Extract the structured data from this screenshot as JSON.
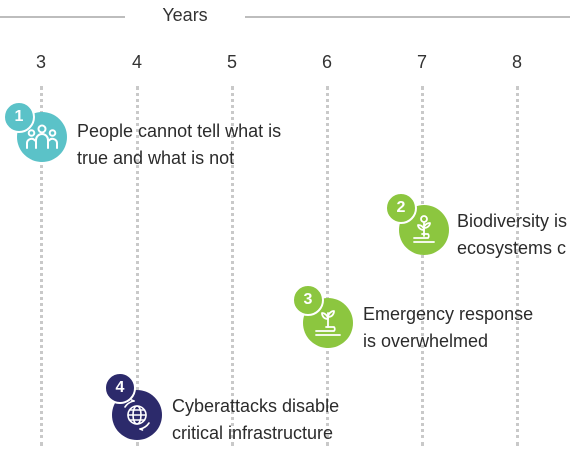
{
  "axis": {
    "title": "Years",
    "ticks": [
      "3",
      "4",
      "5",
      "6",
      "7",
      "8"
    ]
  },
  "events": [
    {
      "number": "1",
      "line1": "People cannot tell what is",
      "line2": "true and what is not",
      "icon": "people-group-icon",
      "color": "#5bc2c8"
    },
    {
      "number": "2",
      "line1": "Biodiversity is",
      "line2": "ecosystems c",
      "icon": "sprout-hand-icon",
      "color": "#8cc63f"
    },
    {
      "number": "3",
      "line1": "Emergency response",
      "line2": "is overwhelmed",
      "icon": "plant-hand-icon",
      "color": "#8cc63f"
    },
    {
      "number": "4",
      "line1": "Cyberattacks disable",
      "line2": "critical infrastructure",
      "icon": "globe-network-icon",
      "color": "#2c2a6b"
    }
  ]
}
